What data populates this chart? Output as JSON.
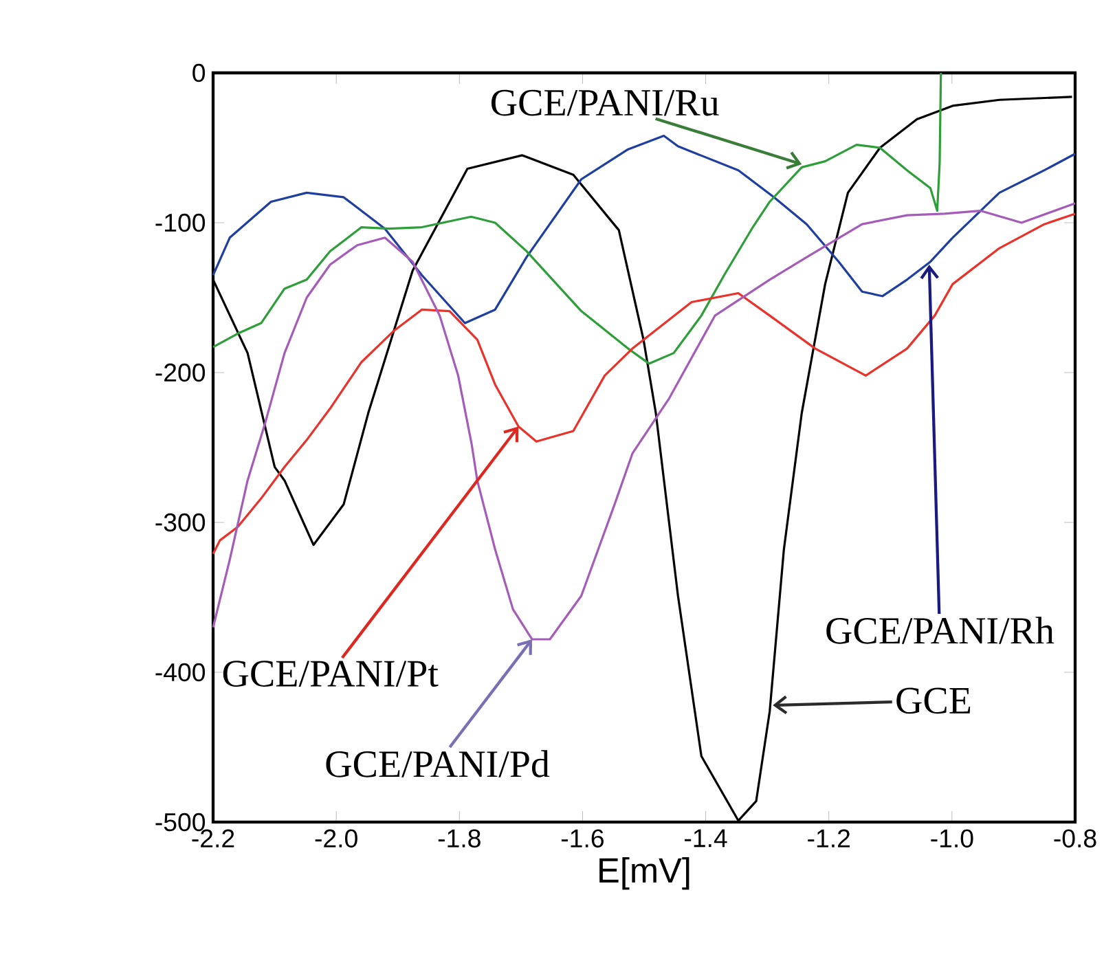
{
  "chart_data": {
    "type": "line",
    "xlabel": "E[mV]",
    "xlim": [
      -2.2,
      -0.8
    ],
    "ylim": [
      -500,
      0
    ],
    "xticks": [
      -2.2,
      {
        "value": -2.0,
        "label": "-2.0"
      },
      -1.8,
      -1.6,
      -1.4,
      -1.2,
      {
        "value": -1.0,
        "label": "-1.0"
      },
      -0.8
    ],
    "yticks": [
      -500,
      -400,
      -300,
      -200,
      -100,
      0
    ],
    "grid": false,
    "marker": "none",
    "line_style": "solid",
    "series": [
      {
        "color": "#000000",
        "x": [
          -2.2,
          -2.144,
          -2.1,
          -2.084,
          -2.037,
          -1.988,
          -1.948,
          -1.876,
          -1.787,
          -1.698,
          -1.615,
          -1.541,
          -1.501,
          -1.481,
          -1.445,
          -1.407,
          -1.347,
          -1.318,
          -1.296,
          -1.273,
          -1.244,
          -1.206,
          -1.169,
          -1.117,
          -1.057,
          -0.999,
          -0.923,
          -0.805
        ],
        "values": [
          -138,
          -187,
          -263,
          -272,
          -315,
          -288,
          -227,
          -132,
          -64,
          -55,
          -68,
          -105,
          -178,
          -227,
          -349,
          -456,
          -499,
          -486,
          -426,
          -318,
          -227,
          -141,
          -80,
          -50,
          -31,
          -22,
          -18,
          -16
        ]
      },
      {
        "color": "#1f3fa0",
        "x": [
          -2.2,
          -2.173,
          -2.106,
          -2.048,
          -1.988,
          -1.921,
          -1.861,
          -1.791,
          -1.742,
          -1.691,
          -1.602,
          -1.526,
          -1.468,
          -1.445,
          -1.347,
          -1.289,
          -1.236,
          -1.184,
          -1.146,
          -1.113,
          -1.073,
          -1.035,
          -0.999,
          -0.923,
          -0.85,
          -0.8
        ],
        "values": [
          -135,
          -110,
          -86,
          -80,
          -83,
          -104,
          -135,
          -167,
          -158,
          -123,
          -71,
          -51,
          -42,
          -49,
          -65,
          -83,
          -101,
          -126,
          -146,
          -149,
          -138,
          -126,
          -110,
          -80,
          -65,
          -54
        ]
      },
      {
        "color": "#2e9e3a",
        "x": [
          -2.2,
          -2.16,
          -2.122,
          -2.084,
          -2.048,
          -2.01,
          -1.959,
          -1.914,
          -1.861,
          -1.781,
          -1.742,
          -1.691,
          -1.602,
          -1.526,
          -1.492,
          -1.452,
          -1.407,
          -1.37,
          -1.325,
          -1.296,
          -1.244,
          -1.206,
          -1.155,
          -1.117,
          -1.073,
          -1.035,
          -1.024,
          -1.02,
          -1.018
        ],
        "values": [
          -183,
          -174,
          -167,
          -144,
          -138,
          -119,
          -103,
          -104,
          -103,
          -96,
          -100,
          -119,
          -159,
          -184,
          -194,
          -187,
          -162,
          -135,
          -104,
          -86,
          -63,
          -59,
          -48,
          -50,
          -65,
          -77,
          -92,
          -60,
          0
        ]
      },
      {
        "color": "#e8322a",
        "x": [
          -2.2,
          -2.189,
          -2.16,
          -2.122,
          -2.084,
          -2.048,
          -2.01,
          -1.959,
          -1.906,
          -1.861,
          -1.816,
          -1.771,
          -1.742,
          -1.704,
          -1.675,
          -1.615,
          -1.564,
          -1.519,
          -1.423,
          -1.347,
          -1.296,
          -1.222,
          -1.14,
          -1.073,
          -1.028,
          -0.999,
          -0.923,
          -0.85,
          -0.8
        ],
        "values": [
          -321,
          -312,
          -303,
          -284,
          -263,
          -245,
          -224,
          -193,
          -172,
          -158,
          -159,
          -178,
          -208,
          -236,
          -246,
          -239,
          -202,
          -184,
          -153,
          -147,
          -162,
          -184,
          -202,
          -184,
          -162,
          -141,
          -117,
          -101,
          -94
        ]
      },
      {
        "color": "#a55bb8",
        "x": [
          -2.2,
          -2.173,
          -2.144,
          -2.115,
          -2.084,
          -2.048,
          -2.01,
          -1.966,
          -1.921,
          -1.876,
          -1.832,
          -1.802,
          -1.78,
          -1.771,
          -1.742,
          -1.713,
          -1.682,
          -1.653,
          -1.602,
          -1.548,
          -1.519,
          -1.459,
          -1.385,
          -1.296,
          -1.236,
          -1.146,
          -1.073,
          -1.012,
          -0.954,
          -0.887,
          -0.8
        ],
        "values": [
          -370,
          -325,
          -272,
          -233,
          -187,
          -150,
          -128,
          -115,
          -110,
          -126,
          -162,
          -202,
          -248,
          -272,
          -318,
          -358,
          -378,
          -378,
          -349,
          -288,
          -254,
          -217,
          -162,
          -138,
          -123,
          -101,
          -95,
          -94,
          -92,
          -100,
          -87
        ]
      }
    ],
    "annotations": [
      {
        "text": "GCE/PANI/Ru",
        "x": -1.244,
        "y": -61
      },
      {
        "text": "GCE/PANI/Rh",
        "x": -1.037,
        "y": -128
      },
      {
        "text": "GCE/PANI/Pt",
        "x": -1.704,
        "y": -236
      },
      {
        "text": "GCE/PANI/Pd",
        "x": -1.682,
        "y": -378
      },
      {
        "text": "GCE",
        "x": -1.291,
        "y": -422
      }
    ]
  }
}
